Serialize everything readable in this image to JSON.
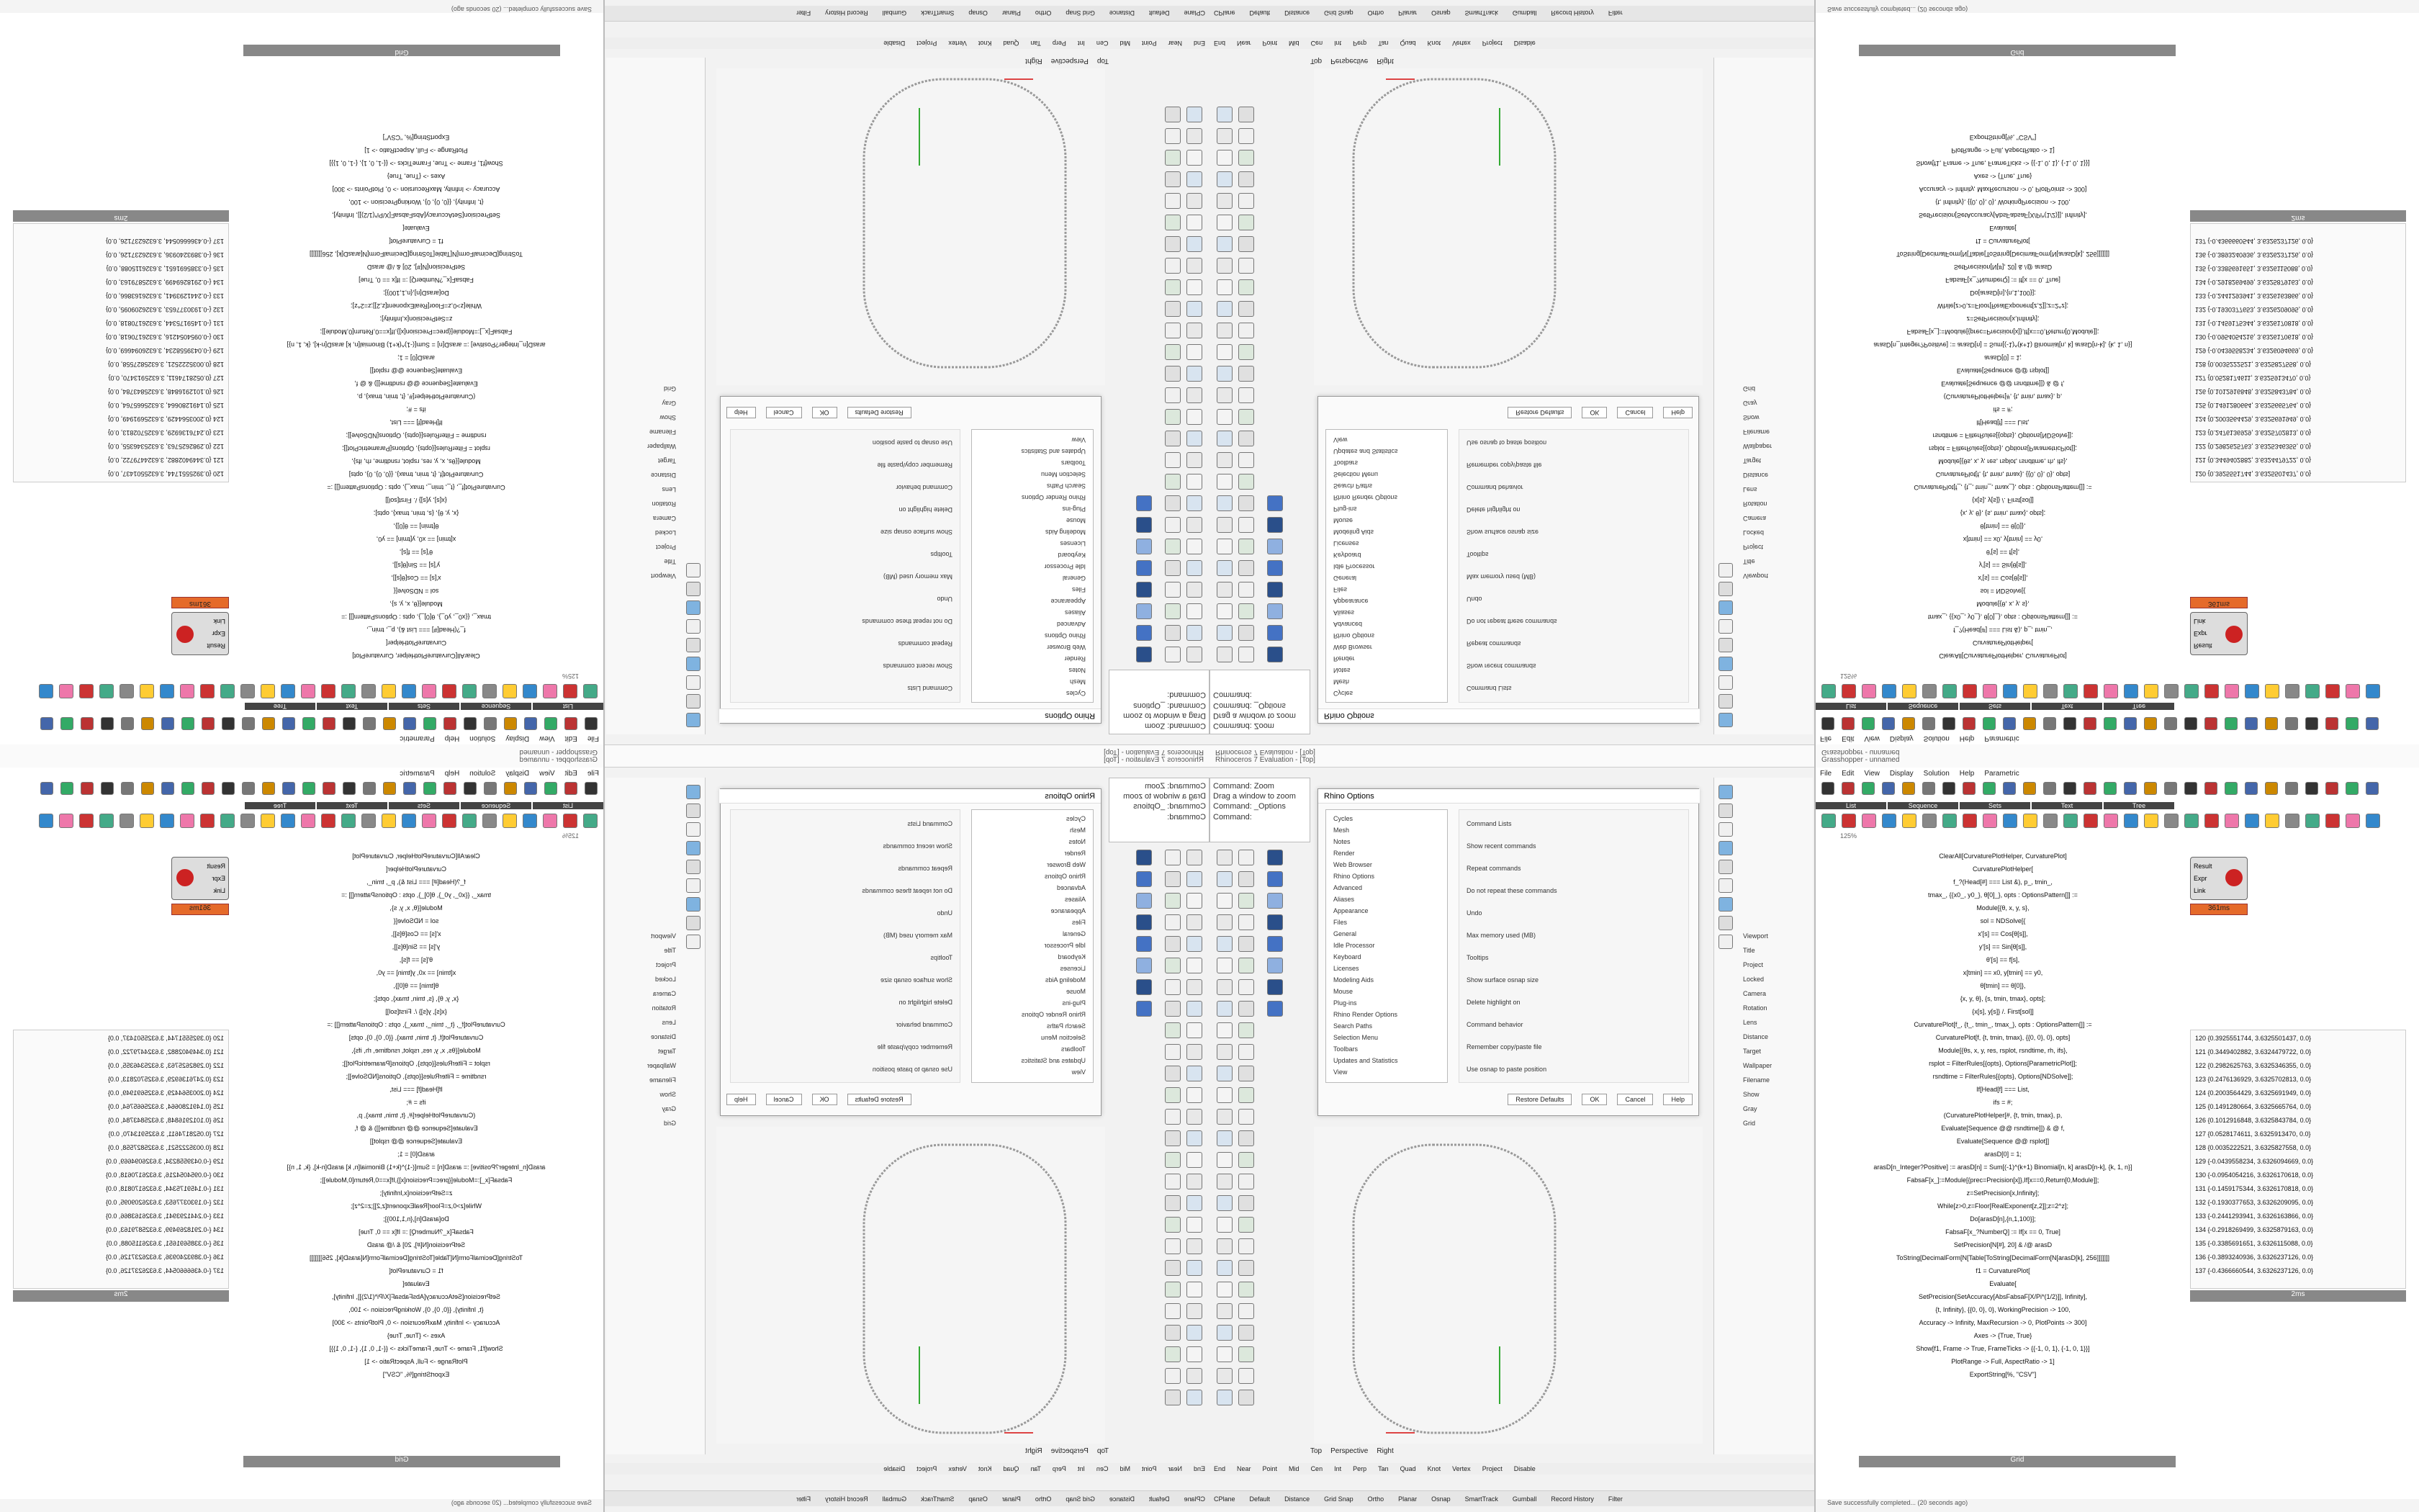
{
  "rhino": {
    "title": "Rhinoceros 7 Evaluation - [Top]",
    "command_history": [
      "Command: Zoom",
      "Drag a window to zoom",
      "Command: _Options"
    ],
    "command_prompt": "Command:",
    "viewport_tabs": [
      "Top",
      "Perspective",
      "Right"
    ],
    "osnaps": [
      "End",
      "Near",
      "Point",
      "Mid",
      "Cen",
      "Int",
      "Perp",
      "Tan",
      "Quad",
      "Knot",
      "Vertex",
      "Project",
      "Disable"
    ],
    "status": [
      "CPlane",
      "Default",
      "Distance",
      "Grid Snap",
      "Ortho",
      "Planar",
      "Osnap",
      "SmartTrack",
      "Gumball",
      "Record History",
      "Filter"
    ]
  },
  "options_dialog": {
    "title": "Rhino Options",
    "tree": [
      "Cycles",
      "Mesh",
      "Notes",
      "Render",
      "Web Browser",
      "Rhino Options",
      "Advanced",
      "Aliases",
      "Appearance",
      "Files",
      "General",
      "Idle Processor",
      "Keyboard",
      "Licenses",
      "Modeling Aids",
      "Mouse",
      "Plug-ins",
      "Rhino Render Options",
      "Search Paths",
      "Selection Menu",
      "Toolbars",
      "Updates and Statistics",
      "View"
    ],
    "sections": [
      "Command Lists",
      "Show recent commands",
      "Repeat commands",
      "Do not repeat these commands",
      "Undo",
      "Max memory used (MB)",
      "Tooltips",
      "Show surface osnap size",
      "Delete highlight on",
      "Command behavior",
      "Remember copy/paste file",
      "Use osnap to paste position"
    ],
    "buttons": [
      "Restore Defaults",
      "OK",
      "Cancel",
      "Help"
    ]
  },
  "properties_panel": {
    "items": [
      "Viewport",
      "Title",
      "Project",
      "Locked",
      "Camera",
      "Rotation",
      "Lens",
      "Distance",
      "Target",
      "Wallpaper",
      "Filename",
      "Show",
      "Gray",
      "Grid"
    ]
  },
  "grasshopper": {
    "title": "Grasshopper - unnamed",
    "menu": [
      "File",
      "Edit",
      "View",
      "Display",
      "Solution",
      "Help",
      "Parametric"
    ],
    "tabs": [
      "List",
      "Sequence",
      "Sets",
      "Text",
      "Tree"
    ],
    "zoom": "125%",
    "component_ports": [
      "Result",
      "Expr",
      "Link"
    ],
    "timing": "361ms",
    "code_panel_name": "Grid",
    "code": [
      "ClearAll[CurvaturePlotHelper, CurvaturePlot]",
      "CurvaturePlotHelper[",
      "f_?(Head[#] === List &), p_, tmin_,",
      "tmax_, {{x0_, y0_}, θ[0]_}, opts : OptionsPattern[]] :=",
      "Module[{θ, x, y, s},",
      "sol = NDSolve[{",
      "x'[s] == Cos[θ[s]],",
      "y'[s] == Sin[θ[s]],",
      "θ'[s] == f[s],",
      "x[tmin] == x0, y[tmin] == y0,",
      "θ[tmin] == θ[0]},",
      "{x, y, θ}, {s, tmin, tmax}, opts];",
      "{x[s], y[s]} /. First[sol]]",
      "",
      "CurvaturePlot[f_, {t_, tmin_, tmax_}, opts : OptionsPattern[]] :=",
      "CurvaturePlot[f, {t, tmin, tmax}, {{0, 0}, 0}, opts]",
      "Module[{θs, x, y, res, rsplot, rsndtime, rh, ifs},",
      "rsplot = FilterRules[{opts}, Options[ParametricPlot]];",
      "rsndtime = FilterRules[{opts}, Options[NDSolve]];",
      "If[Head[f] === List,",
      "ifs = #;",
      "(CurvaturePlotHelper[#, {t, tmin, tmax}, p,",
      "Evaluate[Sequence @@ rsndtime]]) & @ f,",
      "Evaluate[Sequence @@ rsplot]]",
      "",
      "arasD[0] = 1;",
      "arasD[n_Integer?Positive] := arasD[n] = Sum[(-1)^(k+1) Binomial[n, k] arasD[n-k], {k, 1, n}]",
      "FabsaF[x_]:=Module[{prec=Precision[x]},If[x==0,Return[0,Module]];",
      "z=SetPrecision[x,Infinity];",
      "While[z>0,z=Floor[RealExponent[z,2]];z=2^z];",
      "Do[arasD[n],{n,1,100}];",
      "FabsaF[x_?NumberQ] := If[x == 0, True]",
      "SetPrecision[N[#], 20] & /@ arasD",
      "",
      "ToString[DecimalForm[N[Table[ToString[DecimalForm[N[arasD[k], 256]]]]]]]",
      "f1 = CurvaturePlot[",
      "Evaluate[",
      "SetPrecision[SetAccuracy[AbsFabsaF[X/Pi*(1/2)]], Infinity],",
      "{t, Infinity}, {{0, 0}, 0}, WorkingPrecision -> 100,",
      "Accuracy -> Infinity, MaxRecursion -> 0, PlotPoints -> 300]",
      "Axes -> {True, True}",
      "Show[f1, Frame -> True, FrameTicks -> {{-1, 0, 1}, {-1, 0, 1}}]",
      "PlotRange -> Full, AspectRatio -> 1]",
      "ExportString[%, \"CSV\"]"
    ],
    "list_panel_name": "2ms",
    "list": [
      "120 {0.3925551744, 3.6325501437, 0.0}",
      "121 {0.3449402882, 3.6324479722, 0.0}",
      "122 {0.2982625763, 3.6325346355, 0.0}",
      "123 {0.2476136929, 3.6325702813, 0.0}",
      "124 {0.2003564429, 3.6325691949, 0.0}",
      "125 {0.1491280664, 3.6325665764, 0.0}",
      "126 {0.1012916848, 3.6325843784, 0.0}",
      "127 {0.0528174611, 3.6325913470, 0.0}",
      "128 {0.0035222521, 3.6325827558, 0.0}",
      "129 {-0.0439558234, 3.6326094669, 0.0}",
      "130 {-0.0954054216, 3.6326170618, 0.0}",
      "131 {-0.1459175344, 3.6326170818, 0.0}",
      "132 {-0.1930377653, 3.6326209095, 0.0}",
      "133 {-0.2441293941, 3.6326163866, 0.0}",
      "134 {-0.2918269499, 3.6325879163, 0.0}",
      "135 {-0.3385691651, 3.6326115088, 0.0}",
      "136 {-0.3893240936, 3.6326237126, 0.0}",
      "137 {-0.4366660544, 3.6326237126, 0.0}"
    ],
    "status": "Save successfully completed... (20 seconds ago)"
  }
}
